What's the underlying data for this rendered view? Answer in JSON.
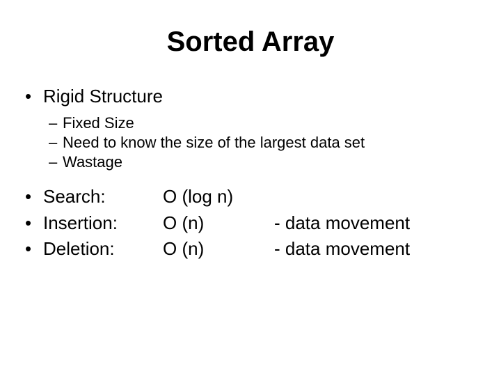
{
  "title": "Sorted Array",
  "bullet_char": "•",
  "dash_char": "–",
  "title_fontsize": 40,
  "body_fontsize": 26,
  "sub_fontsize": 22,
  "text_color": "#000000",
  "background_color": "#ffffff",
  "bullets": {
    "b1": {
      "text": "Rigid Structure",
      "subs": {
        "s1": "Fixed Size",
        "s2": "Need to know the size of the largest data set",
        "s3": "Wastage"
      }
    }
  },
  "ops": {
    "search": {
      "label": "Search:",
      "bigO": "O (log n)",
      "note": ""
    },
    "insertion": {
      "label": "Insertion:",
      "bigO": "O (n)",
      "note": "- data movement"
    },
    "deletion": {
      "label": "Deletion:",
      "bigO": "O (n)",
      "note": "- data movement"
    }
  }
}
